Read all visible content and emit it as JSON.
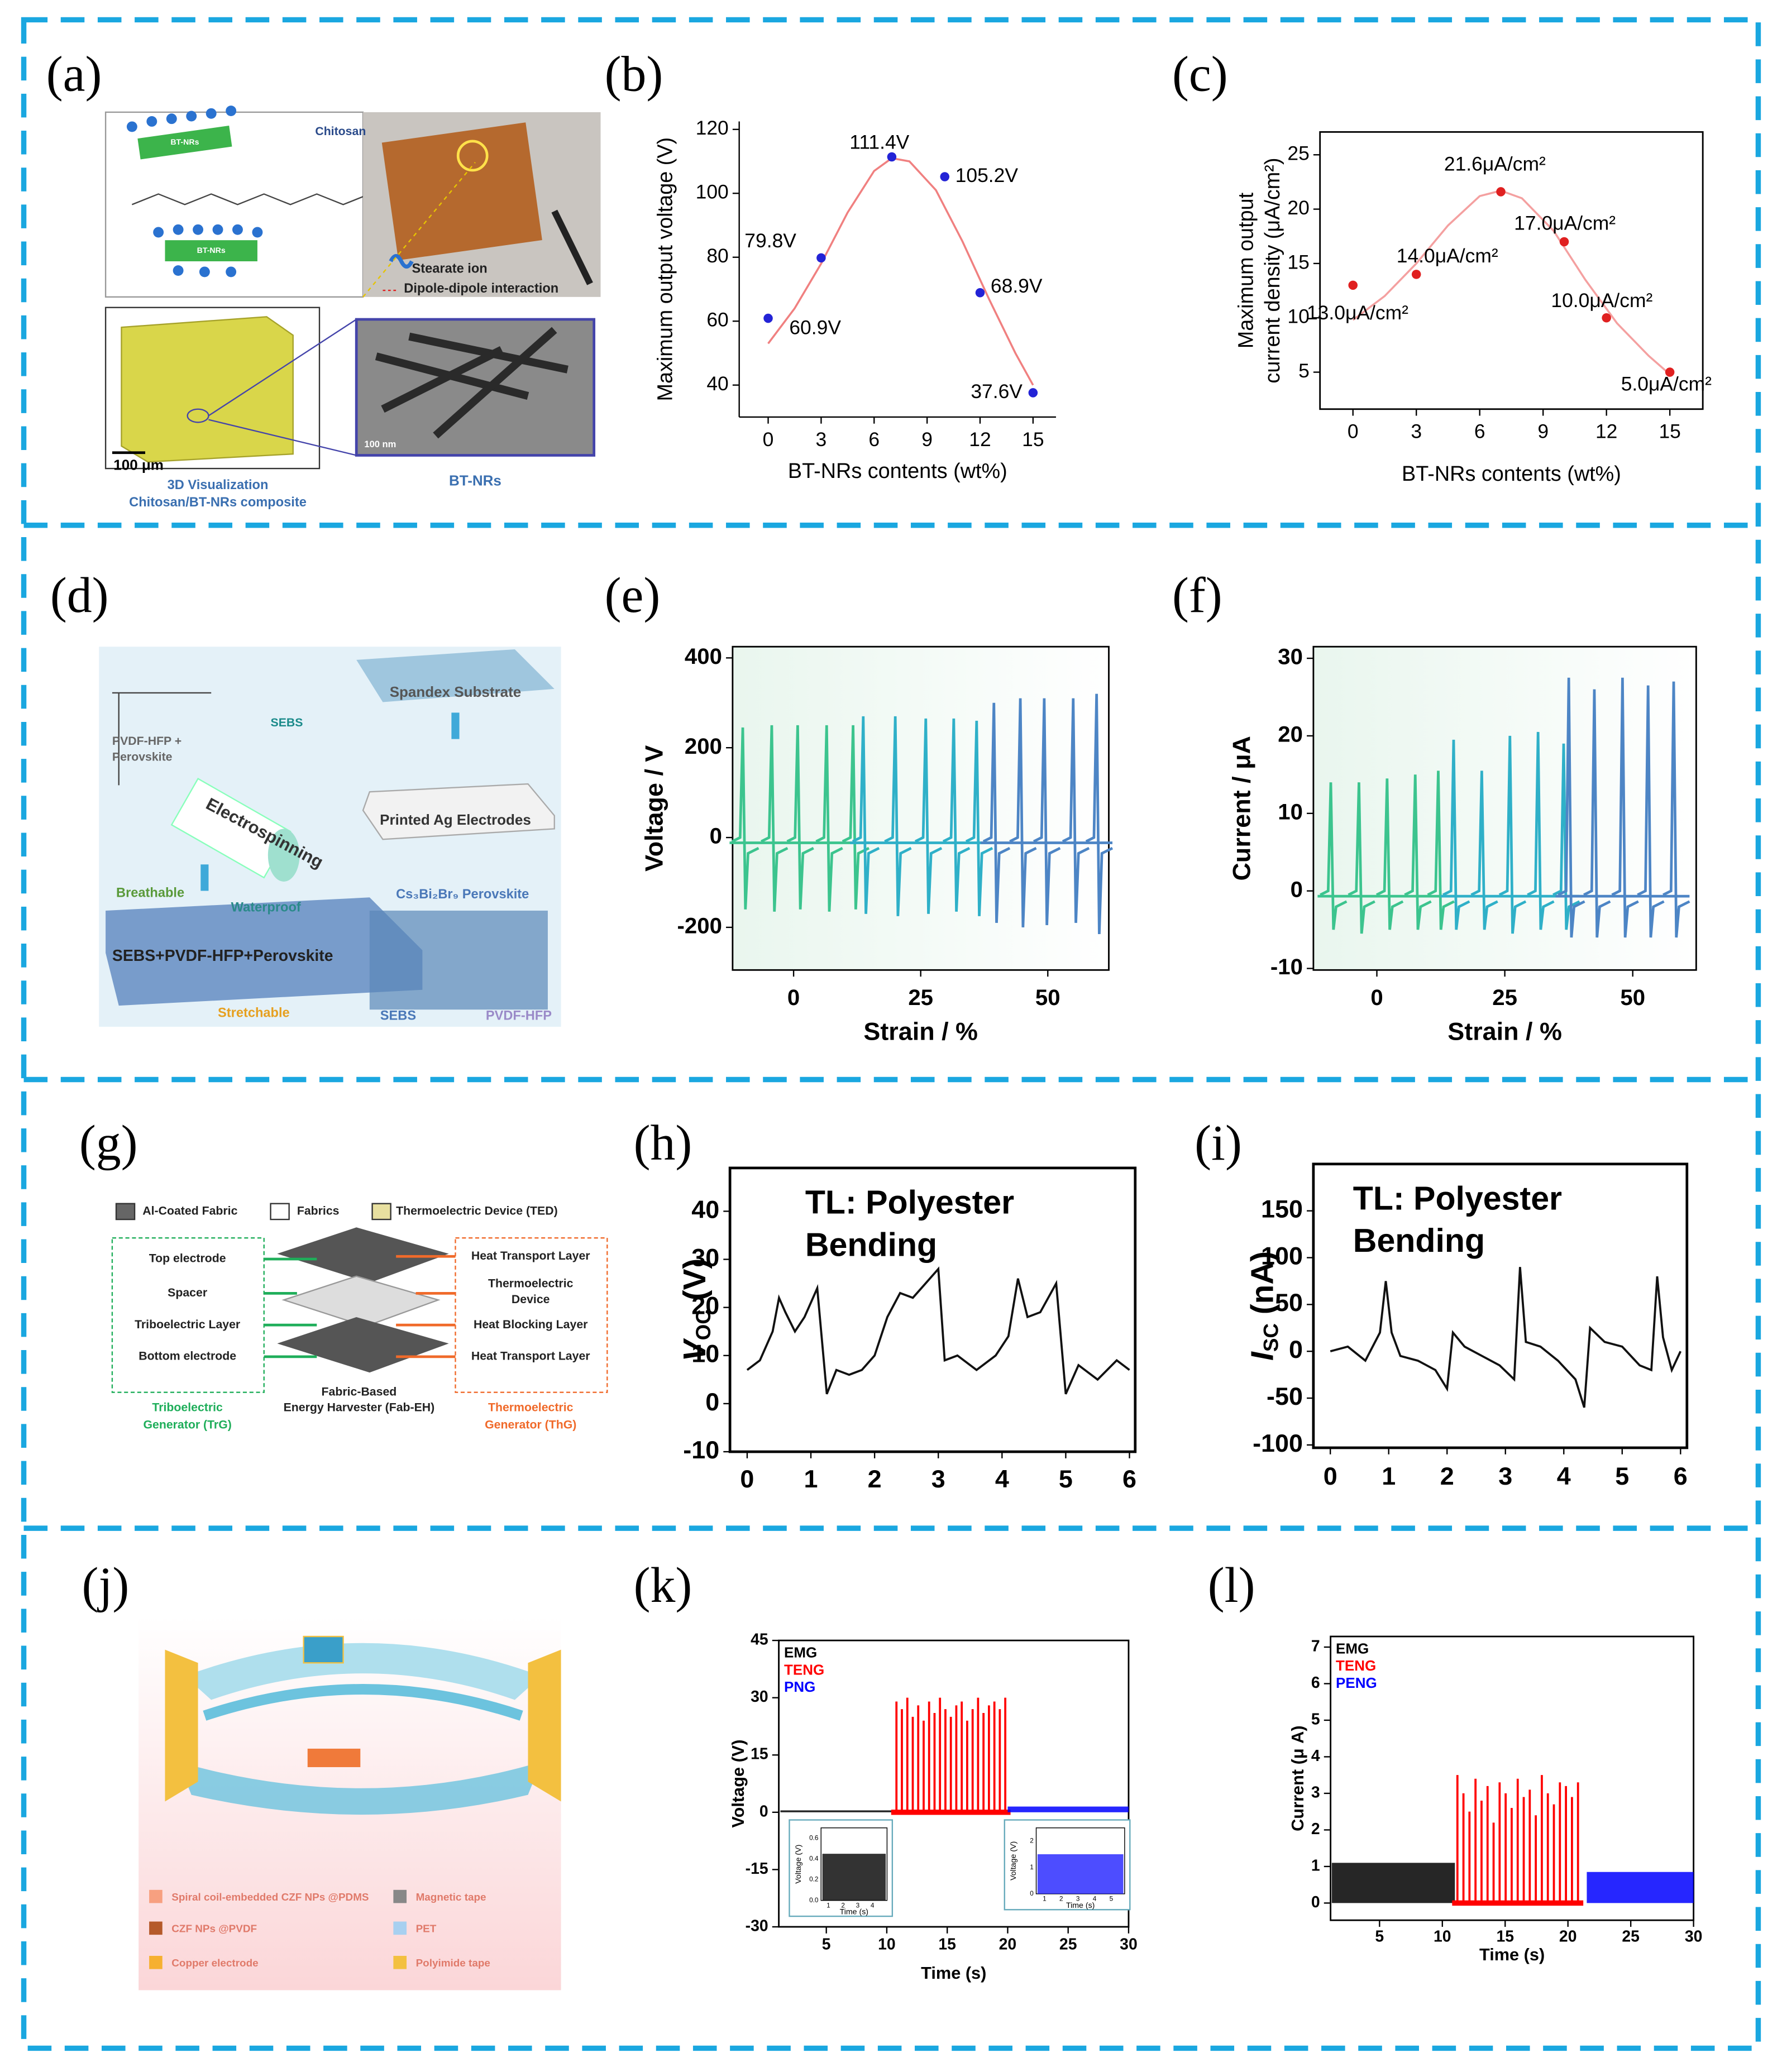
{
  "panel_labels": [
    "(a)",
    "(b)",
    "(c)",
    "(d)",
    "(e)",
    "(f)",
    "(g)",
    "(h)",
    "(i)",
    "(j)",
    "(k)",
    "(l)"
  ],
  "diagrams": {
    "a": [
      "BT-NRs",
      "BT-NRs",
      "Chitosan",
      "Stearate ion",
      "Dipole-dipole interaction",
      "100 μm",
      "BT-NRs",
      "3D Visualization",
      "Chitosan/BT-NRs composite",
      "100 nm"
    ],
    "d": [
      "SEBS",
      "PVDF-HFP +",
      "Perovskite",
      "Electrospinning",
      "Spandex Substrate",
      "Printed Ag Electrodes",
      "Breathable",
      "Waterproof",
      "Cs₃Bi₂Br₉ Perovskite",
      "SEBS+PVDF-HFP+Perovskite",
      "Stretchable",
      "SEBS",
      "PVDF-HFP"
    ],
    "g": [
      "Al-Coated Fabric",
      "Fabrics",
      "Thermoelectric Device (TED)",
      "Top electrode",
      "Spacer",
      "Triboelectric Layer",
      "Bottom electrode",
      "Triboelectric",
      "Generator (TrG)",
      "Heat Transport Layer",
      "Thermoelectric",
      "Device",
      "Heat Blocking Layer",
      "Heat Transport Layer",
      "Thermoelectric",
      "Generator (ThG)",
      "Fabric-Based",
      "Energy Harvester (Fab-EH)"
    ],
    "j": [
      "Spiral coil-embedded CZF NPs @PDMS",
      "Magnetic tape",
      "CZF NPs @PVDF",
      "PET",
      "Copper electrode",
      "Polyimide tape"
    ]
  },
  "chart_data": [
    {
      "type": "scatter",
      "frame": false,
      "ylabel": "Maximum output voltage (V)",
      "xlabel": "BT-NRs contents (wt%)",
      "x": [
        0,
        3,
        7,
        10,
        12,
        15
      ],
      "values": [
        60.9,
        79.8,
        111.4,
        105.2,
        68.9,
        37.6
      ],
      "value_labels": [
        "60.9V",
        "79.8V",
        "111.4V",
        "105.2V",
        "68.9V",
        "37.6V"
      ],
      "color": "#2323d6",
      "fit": {
        "color": "#f08080",
        "x": [
          0,
          1.5,
          3,
          4.5,
          6,
          7,
          8,
          9.5,
          11,
          12.5,
          14,
          15
        ],
        "values": [
          53,
          64,
          78,
          94,
          107,
          111,
          110,
          101,
          85,
          67,
          50,
          40
        ]
      },
      "xlim": [
        -1.64,
        16.3
      ],
      "ylim": [
        30,
        122.5
      ],
      "xticks": [
        0,
        3,
        6,
        9,
        12,
        15
      ],
      "yticks": [
        40,
        60,
        80,
        100,
        120
      ]
    },
    {
      "type": "scatter",
      "frame": true,
      "ylabel": [
        "Maximum output",
        "current density (μA/cm²)"
      ],
      "xlabel": "BT-NRs contents (wt%)",
      "x": [
        0,
        3,
        7,
        10,
        12,
        15
      ],
      "values": [
        13.0,
        14.0,
        21.6,
        17.0,
        10.0,
        5.0
      ],
      "value_labels": [
        "13.0μA/cm²",
        "14.0μA/cm²",
        "21.6μA/cm²",
        "17.0μA/cm²",
        "10.0μA/cm²",
        "5.0μA/cm²"
      ],
      "color": "#e02020",
      "fit": {
        "color": "#f4a0a0",
        "x": [
          0,
          1.5,
          3,
          4.5,
          6,
          7,
          8,
          9.5,
          11,
          12.5,
          14,
          15
        ],
        "values": [
          9.8,
          12,
          15,
          18.5,
          21.2,
          21.7,
          21,
          18,
          13.5,
          9.5,
          6.5,
          4.8
        ]
      },
      "xlim": [
        -1.56,
        16.56
      ],
      "ylim": [
        1.6,
        27.1
      ],
      "xticks": [
        0,
        3,
        6,
        9,
        12,
        15
      ],
      "yticks": [
        5,
        10,
        15,
        20,
        25
      ]
    },
    {
      "type": "spikes",
      "frame": true,
      "ylabel": "Voltage / V",
      "xlabel": "Strain / %",
      "xlim": [
        -12,
        62
      ],
      "ylim": [
        -295,
        425
      ],
      "xticks": [
        0,
        25,
        50
      ],
      "yticks": [
        400,
        200,
        0,
        -200
      ],
      "series": [
        {
          "color": "#3cc48e",
          "x": [
            -10,
            -4.3,
            0.8,
            6.5,
            11.7
          ],
          "peaks": [
            245,
            250,
            250,
            250,
            250
          ],
          "troughs": [
            -160,
            -165,
            -160,
            -165,
            -160
          ]
        },
        {
          "color": "#2fb0c8",
          "x": [
            13.7,
            20,
            26,
            31.5,
            36
          ],
          "peaks": [
            270,
            270,
            265,
            265,
            260
          ],
          "troughs": [
            -170,
            -175,
            -170,
            -165,
            -175
          ]
        },
        {
          "color": "#4d85c5",
          "x": [
            39.4,
            44.6,
            49.3,
            55,
            59.6
          ],
          "peaks": [
            300,
            310,
            310,
            310,
            320
          ],
          "troughs": [
            -190,
            -200,
            -195,
            -190,
            -215
          ]
        }
      ]
    },
    {
      "type": "spikes",
      "frame": true,
      "ylabel": "Current / μA",
      "xlabel": "Strain / %",
      "xlim": [
        -12.4,
        62.4
      ],
      "ylim": [
        -10.2,
        31.5
      ],
      "xticks": [
        0,
        25,
        50
      ],
      "yticks": [
        30,
        20,
        10,
        0,
        -10
      ],
      "series": [
        {
          "color": "#3cc48e",
          "x": [
            -9,
            -3.5,
            2,
            7.5,
            12
          ],
          "peaks": [
            14,
            14,
            14.5,
            15,
            15.5
          ],
          "troughs": [
            -5,
            -5.5,
            -5,
            -5,
            -5
          ]
        },
        {
          "color": "#2fb0c8",
          "x": [
            15,
            20.5,
            26,
            31.5,
            36.5
          ],
          "peaks": [
            19.5,
            15.5,
            20,
            20.5,
            19
          ],
          "troughs": [
            -5,
            -5,
            -5.5,
            -5,
            -5
          ]
        },
        {
          "color": "#4d85c5",
          "x": [
            37.5,
            42.5,
            48,
            53,
            58
          ],
          "peaks": [
            27.5,
            26,
            27.5,
            26.5,
            27
          ],
          "troughs": [
            -6,
            -6,
            -6,
            -6,
            -6
          ]
        }
      ]
    },
    {
      "type": "line",
      "frame": true,
      "title": [
        "TL: Polyester",
        "Bending"
      ],
      "ylabel": {
        "main": "V",
        "sub": "OC",
        "unit": " (V)"
      },
      "xlim": [
        -0.27,
        6.09
      ],
      "ylim": [
        -10,
        49
      ],
      "xticks": [
        0,
        1,
        2,
        3,
        4,
        5,
        6
      ],
      "yticks": [
        -10,
        0,
        10,
        20,
        30,
        40
      ],
      "color": "#111111",
      "x": [
        0,
        0.2,
        0.4,
        0.5,
        0.6,
        0.75,
        0.9,
        1.1,
        1.25,
        1.4,
        1.6,
        1.8,
        2.0,
        2.2,
        2.4,
        2.6,
        2.8,
        3.0,
        3.1,
        3.3,
        3.6,
        3.9,
        4.1,
        4.25,
        4.4,
        4.6,
        4.85,
        5.0,
        5.2,
        5.5,
        5.8,
        6.0
      ],
      "values": [
        7,
        9,
        15,
        22,
        19,
        15,
        18,
        24,
        2,
        7,
        6,
        7,
        10,
        18,
        23,
        22,
        25,
        28,
        9,
        10,
        7,
        10,
        14,
        26,
        18,
        19,
        25,
        2,
        8,
        5,
        9,
        7
      ]
    },
    {
      "type": "line",
      "frame": true,
      "title": [
        "TL: Polyester",
        "Bending"
      ],
      "ylabel": {
        "main": "I",
        "sub": "SC",
        "unit": " (nA)"
      },
      "xlim": [
        -0.29,
        6.11
      ],
      "ylim": [
        -103,
        200
      ],
      "xticks": [
        0,
        1,
        2,
        3,
        4,
        5,
        6
      ],
      "yticks": [
        -100,
        -50,
        0,
        50,
        100,
        150
      ],
      "color": "#111111",
      "x": [
        0,
        0.3,
        0.6,
        0.85,
        0.95,
        1.05,
        1.2,
        1.5,
        1.8,
        2.0,
        2.1,
        2.3,
        2.6,
        2.9,
        3.15,
        3.25,
        3.35,
        3.6,
        3.9,
        4.2,
        4.35,
        4.45,
        4.7,
        5.0,
        5.3,
        5.5,
        5.6,
        5.7,
        5.85,
        6.0
      ],
      "values": [
        0,
        5,
        -10,
        20,
        75,
        20,
        -5,
        -10,
        -20,
        -40,
        20,
        5,
        -5,
        -15,
        -30,
        90,
        10,
        5,
        -10,
        -30,
        -60,
        25,
        10,
        5,
        -15,
        -20,
        80,
        15,
        -20,
        0
      ]
    },
    {
      "type": "signal",
      "frame": true,
      "legend": "upper left",
      "ylabel": "Voltage (V)",
      "xlabel": "Time (s)",
      "xlim": [
        1.07,
        30
      ],
      "ylim": [
        -30,
        45
      ],
      "xticks": [
        5,
        10,
        15,
        20,
        25,
        30
      ],
      "yticks": [
        45,
        30,
        15,
        0,
        -15,
        -30
      ],
      "series": [
        {
          "name": "EMG",
          "color": "#000000",
          "style": "band",
          "x": [
            1.2,
            10.5
          ],
          "values": [
            0.5,
            0.5
          ]
        },
        {
          "name": "TENG",
          "color": "#ff0000",
          "style": "spikes",
          "x": [
            10.8,
            11.25,
            11.7,
            12.15,
            12.6,
            13.05,
            13.5,
            13.95,
            14.4,
            14.85,
            15.3,
            15.75,
            16.2,
            16.65,
            17.1,
            17.55,
            18,
            18.45,
            18.9,
            19.35,
            19.8
          ],
          "values": [
            29,
            27,
            30,
            25,
            28,
            24,
            29,
            26,
            30,
            27,
            25,
            28,
            29,
            24,
            27,
            30,
            26,
            28,
            29,
            27,
            30
          ]
        },
        {
          "name": "PNG",
          "color": "#0000ff",
          "style": "band",
          "x": [
            20,
            30
          ],
          "values": [
            1.5,
            1.5
          ]
        }
      ],
      "insets": [
        {
          "color": "#000000",
          "ylabel": "Voltage (V)",
          "xlabel": "Time (s)",
          "xlim": [
            0.5,
            5
          ],
          "ylim": [
            0,
            0.7
          ],
          "xticks": [
            1,
            2,
            3,
            4
          ],
          "yticks": [
            {
              "value": 0,
              "label": "0.0"
            },
            0.2,
            0.4,
            0.6
          ],
          "fill_value": 0.45
        },
        {
          "color": "#2020ff",
          "ylabel": "Voltage (V)",
          "xlabel": "Time (s)",
          "xlim": [
            0.5,
            5.8
          ],
          "ylim": [
            0,
            2.5
          ],
          "xticks": [
            1,
            2,
            3,
            4,
            5
          ],
          "yticks": [
            0,
            1,
            2
          ],
          "fill_value": 1.5
        }
      ]
    },
    {
      "type": "signal",
      "frame": true,
      "legend": "upper left",
      "ylabel": "Current (μ A)",
      "xlabel": "Time (s)",
      "xlim": [
        1.1,
        30
      ],
      "ylim": [
        -0.47,
        7.29
      ],
      "xticks": [
        5,
        10,
        15,
        20,
        25,
        30
      ],
      "yticks": [
        0,
        1,
        2,
        3,
        4,
        5,
        6,
        7
      ],
      "series": [
        {
          "name": "EMG",
          "color": "#000000",
          "style": "band",
          "x": [
            1.2,
            11
          ],
          "values": [
            1.1,
            1.1
          ]
        },
        {
          "name": "TENG",
          "color": "#ff0000",
          "style": "spikes",
          "x": [
            11.2,
            11.68,
            12.16,
            12.64,
            13.12,
            13.6,
            14.08,
            14.56,
            15.04,
            15.52,
            16,
            16.48,
            16.96,
            17.44,
            17.92,
            18.4,
            18.88,
            19.36,
            19.84,
            20.32,
            20.8
          ],
          "values": [
            3.5,
            3.0,
            2.5,
            3.4,
            2.8,
            3.2,
            2.2,
            3.3,
            3.0,
            2.6,
            3.4,
            2.9,
            3.1,
            2.4,
            3.5,
            3.0,
            2.7,
            3.3,
            3.2,
            2.9,
            3.3
          ]
        },
        {
          "name": "PENG",
          "color": "#0000ff",
          "style": "band",
          "x": [
            21.5,
            30
          ],
          "values": [
            0.85,
            0.85
          ]
        }
      ]
    }
  ]
}
